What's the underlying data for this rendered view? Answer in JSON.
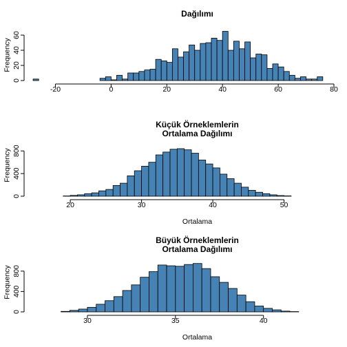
{
  "chart_data": [
    {
      "type": "bar",
      "title": [
        "Dağılımı"
      ],
      "xlabel": "",
      "ylabel": "Frequency",
      "xlim": [
        -30,
        80
      ],
      "ylim": [
        0,
        70
      ],
      "xticks": [
        -20,
        0,
        20,
        40,
        60,
        80
      ],
      "yticks": [
        0,
        20,
        40,
        60
      ],
      "bin_start": -28,
      "bin_width": 2,
      "values": [
        2,
        0,
        0,
        0,
        0,
        0,
        0,
        0,
        0,
        0,
        0,
        0,
        3,
        5,
        1,
        7,
        2,
        10,
        10,
        12,
        14,
        15,
        28,
        26,
        24,
        42,
        31,
        38,
        47,
        40,
        49,
        50,
        56,
        53,
        65,
        40,
        52,
        42,
        51,
        30,
        35,
        34,
        16,
        22,
        18,
        12,
        7,
        3,
        5,
        2,
        2,
        5
      ]
    },
    {
      "type": "bar",
      "title": [
        "Küçük Örneklemlerin",
        "Ortalama Dağılımı"
      ],
      "xlabel": "Ortalama",
      "ylabel": "Frequency",
      "xlim": [
        14,
        57
      ],
      "ylim": [
        0,
        900
      ],
      "xticks": [
        20,
        30,
        40,
        50
      ],
      "yticks": [
        0,
        400,
        800
      ],
      "bin_start": 19,
      "bin_width": 1,
      "values": [
        5,
        15,
        25,
        45,
        60,
        95,
        120,
        190,
        230,
        360,
        450,
        530,
        600,
        730,
        780,
        830,
        840,
        820,
        760,
        640,
        570,
        500,
        390,
        310,
        230,
        160,
        105,
        70,
        45,
        25,
        12,
        6
      ]
    },
    {
      "type": "bar",
      "title": [
        "Büyük Örneklemlerin",
        "Ortalama Dağılımı"
      ],
      "xlabel": "Ortalama",
      "ylabel": "Frequency",
      "xlim": [
        26.6,
        44
      ],
      "ylim": [
        0,
        1000
      ],
      "xticks": [
        30,
        35,
        40
      ],
      "yticks": [
        0,
        400,
        800
      ],
      "bin_start": 28.5,
      "bin_width": 0.5,
      "values": [
        10,
        30,
        55,
        90,
        150,
        220,
        300,
        420,
        530,
        680,
        790,
        920,
        905,
        895,
        930,
        950,
        850,
        690,
        580,
        460,
        330,
        200,
        115,
        70,
        40,
        15,
        6
      ]
    }
  ]
}
